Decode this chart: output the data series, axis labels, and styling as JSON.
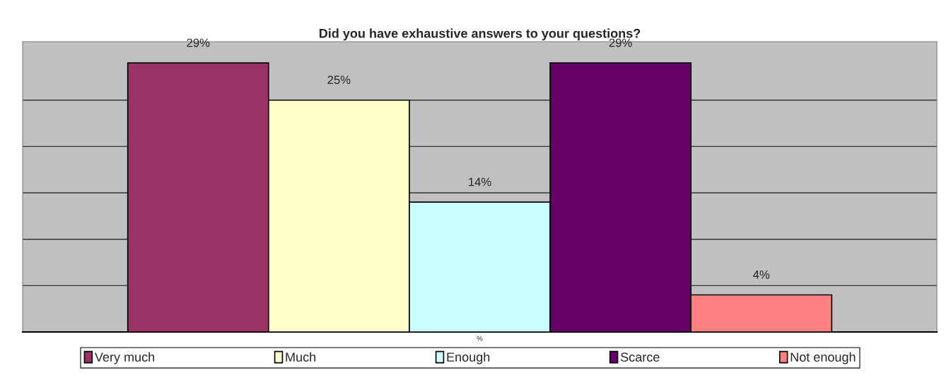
{
  "chart_data": {
    "type": "bar",
    "title": "Did you have exhaustive answers to your questions?",
    "xlabel": "%",
    "categories": [
      null
    ],
    "series": [
      {
        "name": "Very much",
        "color": "#993366",
        "values": [
          29
        ],
        "value_labels": [
          "29%"
        ]
      },
      {
        "name": "Much",
        "color": "#ffffcc",
        "values": [
          25
        ],
        "value_labels": [
          "25%"
        ]
      },
      {
        "name": "Enough",
        "color": "#ccffff",
        "values": [
          14
        ],
        "value_labels": [
          "14%"
        ]
      },
      {
        "name": "Scarce",
        "color": "#660066",
        "values": [
          29
        ],
        "value_labels": [
          "29%"
        ]
      },
      {
        "name": "Not enough",
        "color": "#ff8080",
        "values": [
          4
        ],
        "value_labels": [
          "4%"
        ]
      }
    ],
    "ylim": [
      0,
      31.3
    ],
    "yticks": [
      {
        "value": 0,
        "label": null
      },
      {
        "value": 5,
        "label": null
      },
      {
        "value": 10,
        "label": null
      },
      {
        "value": 15,
        "label": null
      },
      {
        "value": 20,
        "label": null
      },
      {
        "value": 25,
        "label": null
      }
    ],
    "grid": "y",
    "legend": "bottom"
  }
}
